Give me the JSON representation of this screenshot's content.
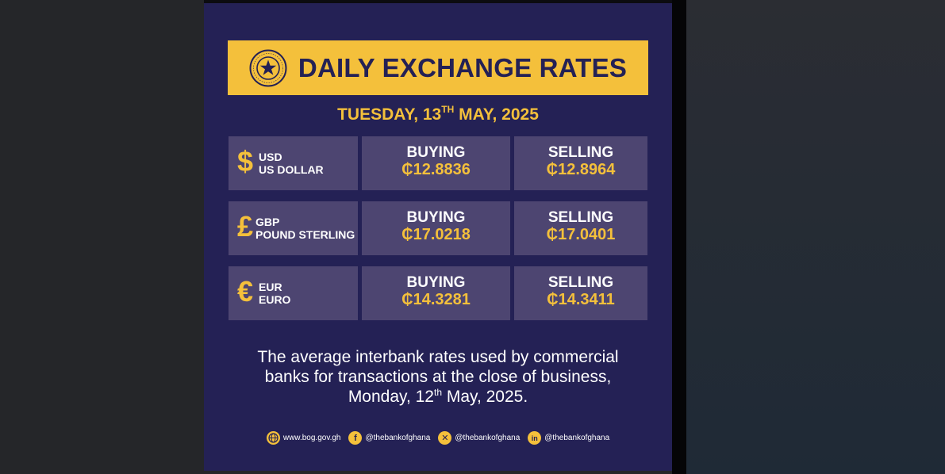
{
  "header": {
    "title": "DAILY EXCHANGE RATES",
    "date_prefix": "TUESDAY, 13",
    "date_suffix": "TH",
    "date_rest": "MAY, 2025"
  },
  "rates": [
    {
      "symbol": "$",
      "code": "USD",
      "name": "US DOLLAR",
      "buying_label": "BUYING",
      "buying": "₵12.8836",
      "selling_label": "SELLING",
      "selling": "₵12.8964"
    },
    {
      "symbol": "£",
      "code": "GBP",
      "name": "POUND STERLING",
      "buying_label": "BUYING",
      "buying": "₵17.0218",
      "selling_label": "SELLING",
      "selling": "₵17.0401"
    },
    {
      "symbol": "€",
      "code": "EUR",
      "name": "EURO",
      "buying_label": "BUYING",
      "buying": "₵14.3281",
      "selling_label": "SELLING",
      "selling": "₵14.3411"
    }
  ],
  "note": {
    "line1": "The average interbank rates used by commercial",
    "line2": "banks for transactions at the close of business,",
    "line3_prefix": "Monday, 12",
    "line3_sup": "th",
    "line3_rest": " May, 2025."
  },
  "socials": [
    {
      "icon": "globe-icon",
      "text": "www.bog.gov.gh"
    },
    {
      "icon": "facebook-icon",
      "text": "@thebankofghana"
    },
    {
      "icon": "x-icon",
      "text": "@thebankofghana"
    },
    {
      "icon": "linkedin-icon",
      "text": "@thebankofghana"
    }
  ],
  "colors": {
    "navy": "#242155",
    "gold": "#f4c03b",
    "cell": "#4d4571"
  }
}
